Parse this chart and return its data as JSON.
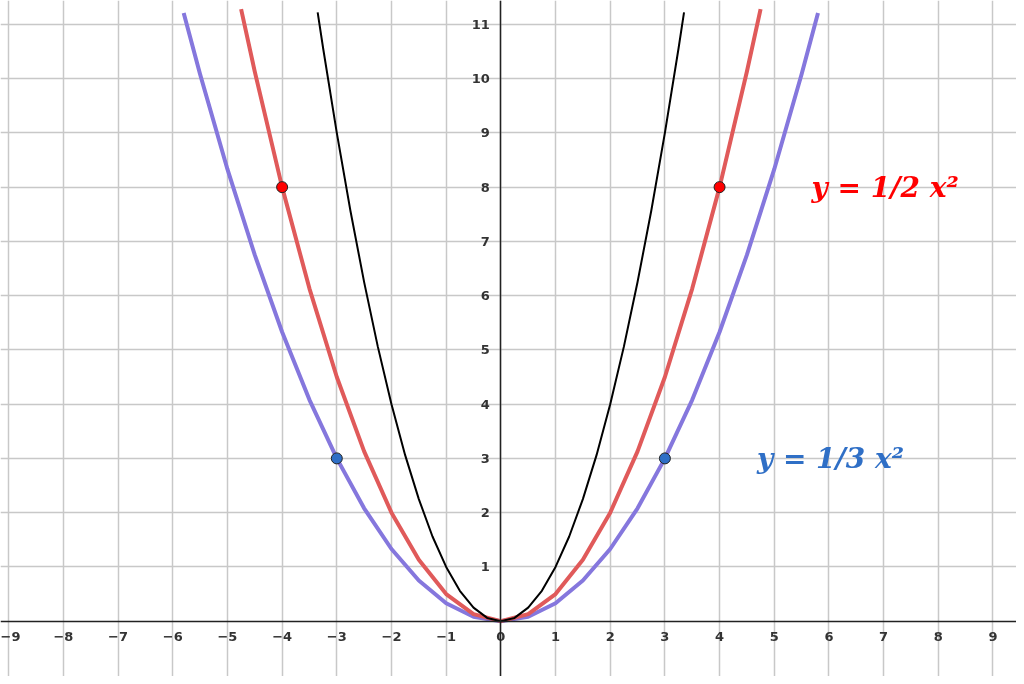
{
  "chart_data": {
    "type": "line",
    "xlim": [
      -9.15,
      9.43
    ],
    "ylim": [
      -1.02,
      11.44
    ],
    "xticks": [
      -9,
      -8,
      -7,
      -6,
      -5,
      -4,
      -3,
      -2,
      -1,
      0,
      1,
      2,
      3,
      4,
      5,
      6,
      7,
      8,
      9
    ],
    "yticks": [
      1,
      2,
      3,
      4,
      5,
      6,
      7,
      8,
      9,
      10,
      11
    ],
    "grid": true,
    "series": [
      {
        "color": "#8577dd",
        "x": [
          -5.8,
          -5.5,
          -5,
          -4.5,
          -4,
          -3.5,
          -3,
          -2.5,
          -2,
          -1.5,
          -1,
          -0.5,
          0,
          0.5,
          1,
          1.5,
          2,
          2.5,
          3,
          3.5,
          4,
          4.5,
          5,
          5.5,
          5.8
        ],
        "values": [
          11.21,
          10.08,
          8.33,
          6.75,
          5.33,
          4.08,
          3,
          2.08,
          1.33,
          0.75,
          0.33,
          0.08,
          0,
          0.08,
          0.33,
          0.75,
          1.33,
          2.08,
          3,
          4.08,
          5.33,
          6.75,
          8.33,
          10.08,
          11.21
        ]
      },
      {
        "color": "#e05a5a",
        "x": [
          -4.75,
          -4.5,
          -4,
          -3.5,
          -3,
          -2.5,
          -2,
          -1.5,
          -1,
          -0.5,
          0,
          0.5,
          1,
          1.5,
          2,
          2.5,
          3,
          3.5,
          4,
          4.5,
          4.75
        ],
        "values": [
          11.28,
          10.13,
          8,
          6.13,
          4.5,
          3.13,
          2,
          1.13,
          0.5,
          0.13,
          0,
          0.13,
          0.5,
          1.13,
          2,
          3.13,
          4.5,
          6.13,
          8,
          10.13,
          11.28
        ]
      },
      {
        "color": "#000000",
        "x": [
          -3.35,
          -3.25,
          -3,
          -2.75,
          -2.5,
          -2.25,
          -2,
          -1.75,
          -1.5,
          -1.25,
          -1,
          -0.75,
          -0.5,
          -0.25,
          0,
          0.25,
          0.5,
          0.75,
          1,
          1.25,
          1.5,
          1.75,
          2,
          2.25,
          2.5,
          2.75,
          3,
          3.25,
          3.35
        ],
        "values": [
          11.22,
          10.56,
          9,
          7.56,
          6.25,
          5.06,
          4,
          3.06,
          2.25,
          1.56,
          1,
          0.56,
          0.25,
          0.06,
          0,
          0.06,
          0.25,
          0.56,
          1,
          1.56,
          2.25,
          3.06,
          4,
          5.06,
          6.25,
          7.56,
          9,
          10.56,
          11.22
        ]
      },
      {
        "type": "scatter",
        "marker": "circle",
        "name": "y = 1/2 x²",
        "color": "#ff0000",
        "x": [
          -4,
          4
        ],
        "values": [
          8,
          8
        ]
      },
      {
        "type": "scatter",
        "marker": "circle",
        "name": "y = 1/3 x²",
        "color": "#2f6fc6",
        "x": [
          -3,
          3
        ],
        "values": [
          3,
          3
        ]
      }
    ]
  }
}
